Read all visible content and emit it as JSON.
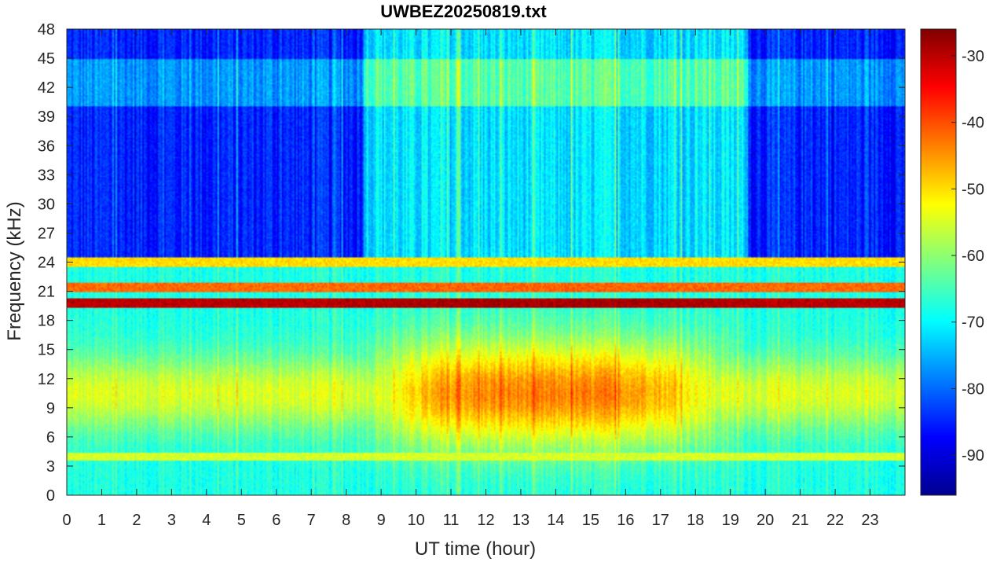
{
  "chart_data": {
    "type": "heatmap",
    "title": "UWBEZ20250819.txt",
    "xlabel": "UT time (hour)",
    "ylabel": "Frequency (kHz)",
    "xlim": [
      0,
      24
    ],
    "ylim": [
      0,
      48
    ],
    "x_ticks": [
      "0",
      "1",
      "2",
      "3",
      "4",
      "5",
      "6",
      "7",
      "8",
      "9",
      "10",
      "11",
      "12",
      "13",
      "14",
      "15",
      "16",
      "17",
      "18",
      "19",
      "20",
      "21",
      "22",
      "23"
    ],
    "y_ticks": [
      "0",
      "3",
      "6",
      "9",
      "12",
      "15",
      "18",
      "21",
      "24",
      "27",
      "30",
      "33",
      "36",
      "39",
      "42",
      "45",
      "48"
    ],
    "colorbar": {
      "ticks": [
        "-30",
        "-40",
        "-50",
        "-60",
        "-70",
        "-80",
        "-90"
      ],
      "range": [
        -96,
        -26
      ],
      "colormap": "jet"
    },
    "background_level": {
      "low_frequency_band_0_24kHz": -68,
      "high_frequency_band_24_48kHz_night": -85,
      "high_frequency_band_24_48kHz_day": -72
    },
    "features": [
      {
        "description": "strong narrowband transmitter",
        "frequency_khz": 19.8,
        "level_db": -30
      },
      {
        "description": "narrowband transmitter",
        "frequency_khz": 21.4,
        "level_db": -42
      },
      {
        "description": "narrowband transmitter",
        "frequency_khz": 24.0,
        "level_db": -50
      },
      {
        "description": "broadband daytime enhancement",
        "frequency_range_khz": [
          5,
          16
        ],
        "time_range_hours": [
          8.5,
          19
        ],
        "peak_level_db": -44
      },
      {
        "description": "low-frequency line",
        "frequency_khz": 4.0,
        "level_db": -55
      }
    ]
  },
  "colors": {
    "axis": "#262626",
    "background": "#ffffff"
  }
}
